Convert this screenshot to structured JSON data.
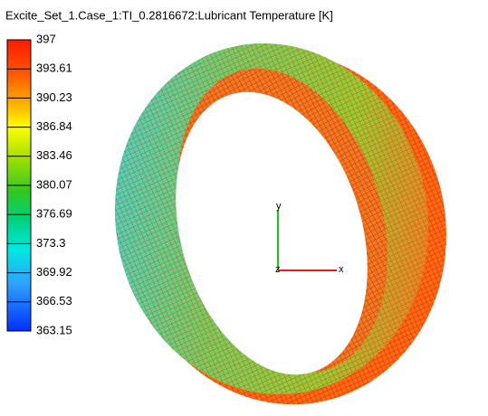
{
  "title": "Excite_Set_1.Case_1:TI_0.2816672:Lubricant Temperature [K]",
  "legend": {
    "labels": [
      "397",
      "393.61",
      "390.23",
      "386.84",
      "383.46",
      "380.07",
      "376.69",
      "373.3",
      "369.92",
      "366.53",
      "363.15"
    ]
  },
  "axes": {
    "x": "x",
    "y": "y",
    "z": "z"
  }
}
